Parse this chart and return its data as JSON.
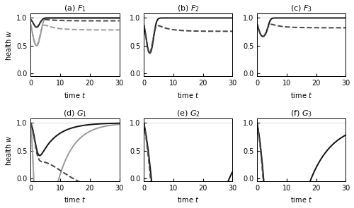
{
  "t_max": 30,
  "t_points": 2000,
  "titles": [
    "(a) $F_1$",
    "(b) $F_2$",
    "(c) $F_3$",
    "(d) $G_1$",
    "(e) $G_2$",
    "(f) $G_3$"
  ],
  "xlabel": "time $t$",
  "ylabel": "health $w$",
  "ylim": [
    -0.05,
    1.08
  ],
  "xlim": [
    0,
    30
  ],
  "xticks": [
    0,
    10,
    20,
    30
  ],
  "yticks": [
    0,
    0.5,
    1
  ],
  "grey_solid": "#999999",
  "grey_dashed": "#aaaaaa",
  "black_solid": "#111111",
  "black_dashed": "#444444",
  "figsize": [
    5.0,
    2.95
  ],
  "dpi": 100
}
